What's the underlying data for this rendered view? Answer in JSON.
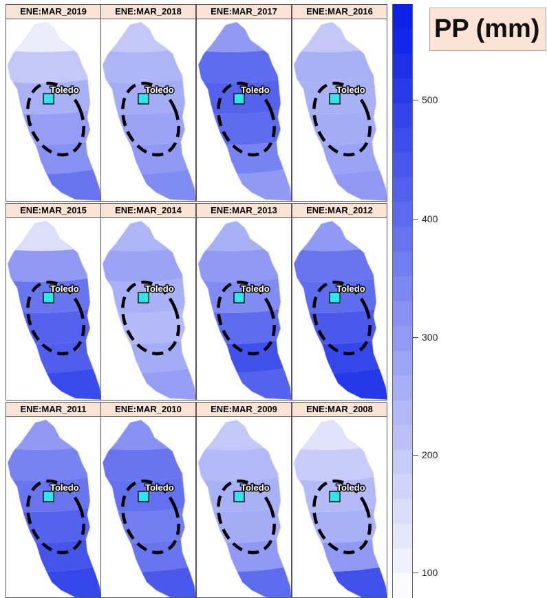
{
  "legend": {
    "title": "PP (mm)",
    "ticks": [
      "500",
      "400",
      "300",
      "200",
      "100"
    ],
    "tick_values": [
      500,
      400,
      300,
      200,
      100
    ],
    "color_low": "#ffffff",
    "color_high": "#0d22e6"
  },
  "marker": {
    "label": "Toledo",
    "color": "#2be8ea"
  },
  "colors": {
    "strip_bg": "#fbe4d5"
  },
  "panels": [
    {
      "label": "ENE:MAR_2019",
      "values": [
        120,
        200,
        250,
        290,
        320,
        380
      ]
    },
    {
      "label": "ENE:MAR_2018",
      "values": [
        200,
        240,
        260,
        280,
        300,
        330
      ]
    },
    {
      "label": "ENE:MAR_2017",
      "values": [
        300,
        400,
        420,
        400,
        350,
        300
      ]
    },
    {
      "label": "ENE:MAR_2016",
      "values": [
        200,
        250,
        250,
        260,
        280,
        300
      ]
    },
    {
      "label": "ENE:MAR_2015",
      "values": [
        150,
        300,
        380,
        420,
        430,
        470
      ]
    },
    {
      "label": "ENE:MAR_2014",
      "values": [
        240,
        280,
        250,
        230,
        260,
        290
      ]
    },
    {
      "label": "ENE:MAR_2013",
      "values": [
        250,
        300,
        330,
        400,
        460,
        420
      ]
    },
    {
      "label": "ENE:MAR_2012",
      "values": [
        300,
        380,
        400,
        440,
        480,
        510
      ]
    },
    {
      "label": "ENE:MAR_2011",
      "values": [
        300,
        350,
        380,
        420,
        450,
        480
      ]
    },
    {
      "label": "ENE:MAR_2010",
      "values": [
        320,
        380,
        390,
        360,
        380,
        440
      ]
    },
    {
      "label": "ENE:MAR_2009",
      "values": [
        200,
        230,
        250,
        260,
        300,
        400
      ]
    },
    {
      "label": "ENE:MAR_2008",
      "values": [
        140,
        190,
        230,
        250,
        300,
        460
      ]
    }
  ]
}
